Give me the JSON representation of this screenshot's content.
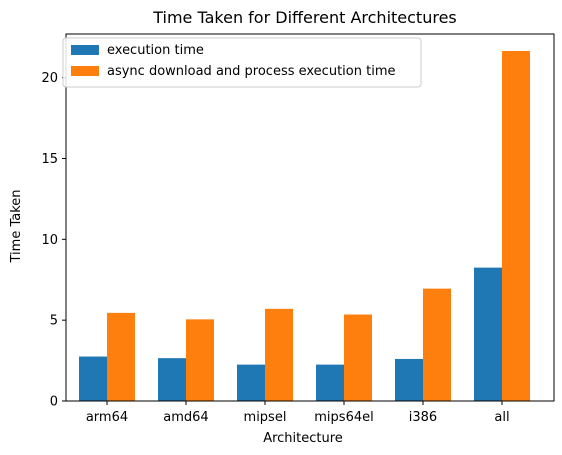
{
  "chart_data": {
    "type": "bar",
    "title": "Time Taken for Different Architectures",
    "xlabel": "Architecture",
    "ylabel": "Time Taken",
    "categories": [
      "arm64",
      "amd64",
      "mipsel",
      "mips64el",
      "i386",
      "all"
    ],
    "series": [
      {
        "name": "execution time",
        "color": "#1f77b4",
        "values": [
          2.75,
          2.65,
          2.25,
          2.25,
          2.6,
          8.25
        ]
      },
      {
        "name": "async download and process execution time",
        "color": "#ff7f0e",
        "values": [
          5.45,
          5.05,
          5.7,
          5.35,
          6.95,
          21.65
        ]
      }
    ],
    "ylim": [
      0,
      22.7
    ],
    "yticks": [
      0,
      5,
      10,
      15,
      20
    ],
    "grid": false,
    "legend_position": "upper-left"
  }
}
